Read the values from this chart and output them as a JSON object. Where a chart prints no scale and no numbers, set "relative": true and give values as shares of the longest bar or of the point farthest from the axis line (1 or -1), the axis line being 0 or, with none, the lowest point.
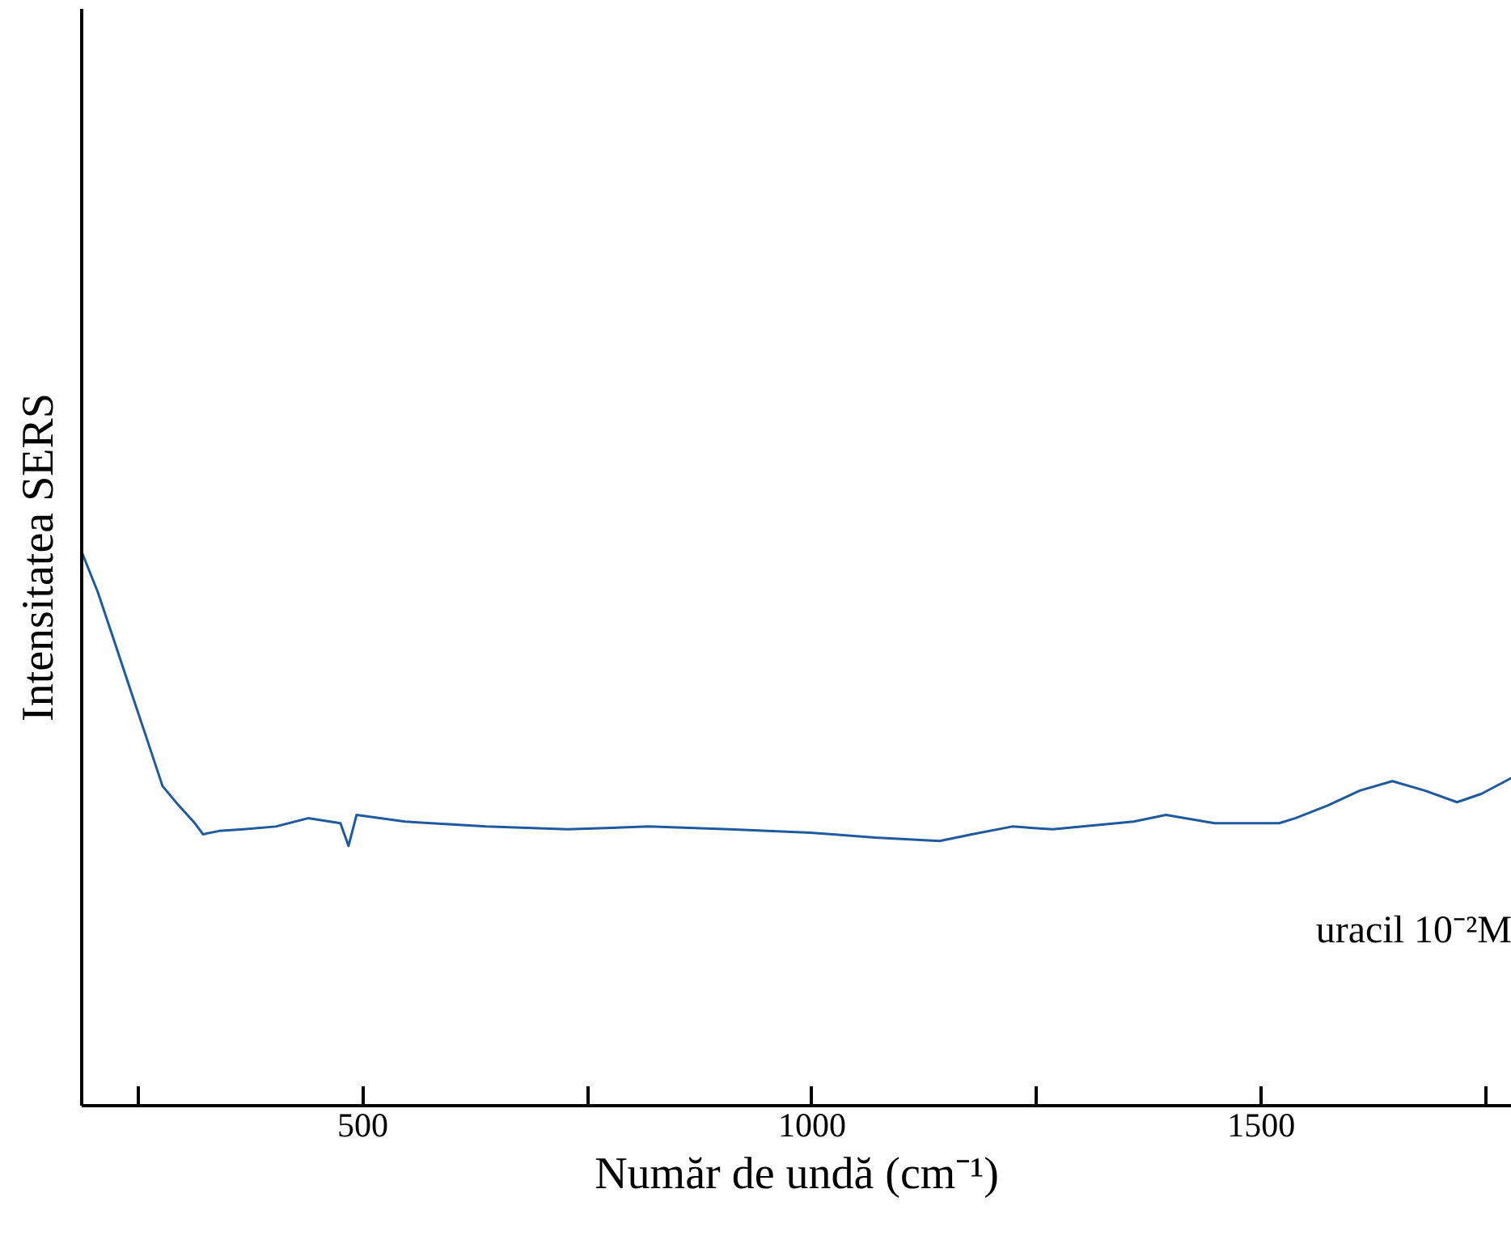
{
  "chart_data": {
    "type": "line",
    "relative": true,
    "xlabel": "Număr de undă (cm⁻¹)",
    "ylabel": "Intensitatea SERS",
    "annotations": [
      "uracil 10⁻²M"
    ],
    "xlim": [
      187,
      1779
    ],
    "xticks": [
      {
        "value": 250,
        "label": null
      },
      500,
      {
        "value": 750,
        "label": null
      },
      1000,
      {
        "value": 1250,
        "label": null
      },
      1500,
      {
        "value": 1750,
        "label": null
      }
    ],
    "tick_labels": "x",
    "grid": false,
    "marker": "none",
    "line_style": "solid",
    "x": [
      187,
      205,
      223,
      241,
      259,
      277,
      295,
      313,
      322,
      340,
      367,
      403,
      439,
      475,
      484,
      493,
      547,
      637,
      728,
      818,
      908,
      998,
      1070,
      1142,
      1178,
      1223,
      1268,
      1358,
      1394,
      1448,
      1520,
      1538,
      1574,
      1610,
      1646,
      1682,
      1718,
      1745,
      1779
    ],
    "series": [
      {
        "color": "#1f5a9e",
        "values": [
          1.0,
          0.927,
          0.84,
          0.752,
          0.665,
          0.577,
          0.542,
          0.51,
          0.49,
          0.496,
          0.499,
          0.504,
          0.519,
          0.51,
          0.469,
          0.525,
          0.513,
          0.504,
          0.499,
          0.504,
          0.499,
          0.493,
          0.484,
          0.478,
          0.49,
          0.504,
          0.499,
          0.513,
          0.525,
          0.51,
          0.51,
          0.519,
          0.542,
          0.569,
          0.586,
          0.569,
          0.548,
          0.563,
          0.592
        ]
      }
    ]
  }
}
